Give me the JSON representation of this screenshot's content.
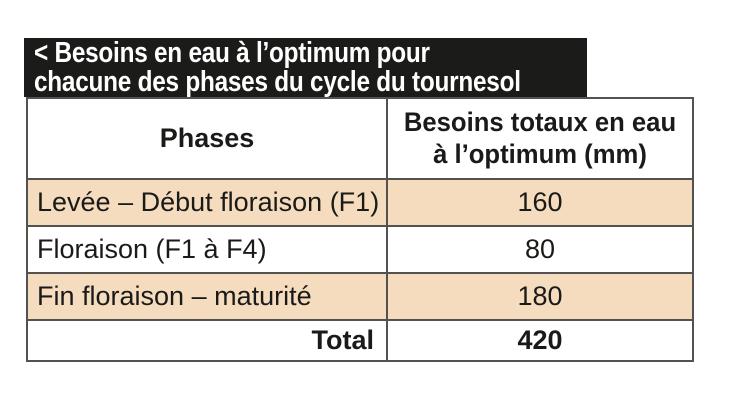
{
  "banner": {
    "line1": "< Besoins en eau à l’optimum pour",
    "line2": "chacune des phases du cycle du tournesol"
  },
  "table": {
    "columns": [
      "Phases",
      "Besoins totaux en eau à l’optimum (mm)"
    ],
    "rows": [
      {
        "phase": "Levée – Début floraison (F1)",
        "value": "160",
        "highlighted": true
      },
      {
        "phase": "Floraison (F1 à F4)",
        "value": "80",
        "highlighted": false
      },
      {
        "phase": "Fin floraison – maturité",
        "value": "180",
        "highlighted": true
      }
    ],
    "total_label": "Total",
    "total_value": "420"
  },
  "colors": {
    "banner_bg": "#1b1b19",
    "banner_text": "#ffffff",
    "row_highlight": "#f5dcbe",
    "border": "#54524f",
    "text": "#1a1a18",
    "page_bg": "#ffffff"
  }
}
